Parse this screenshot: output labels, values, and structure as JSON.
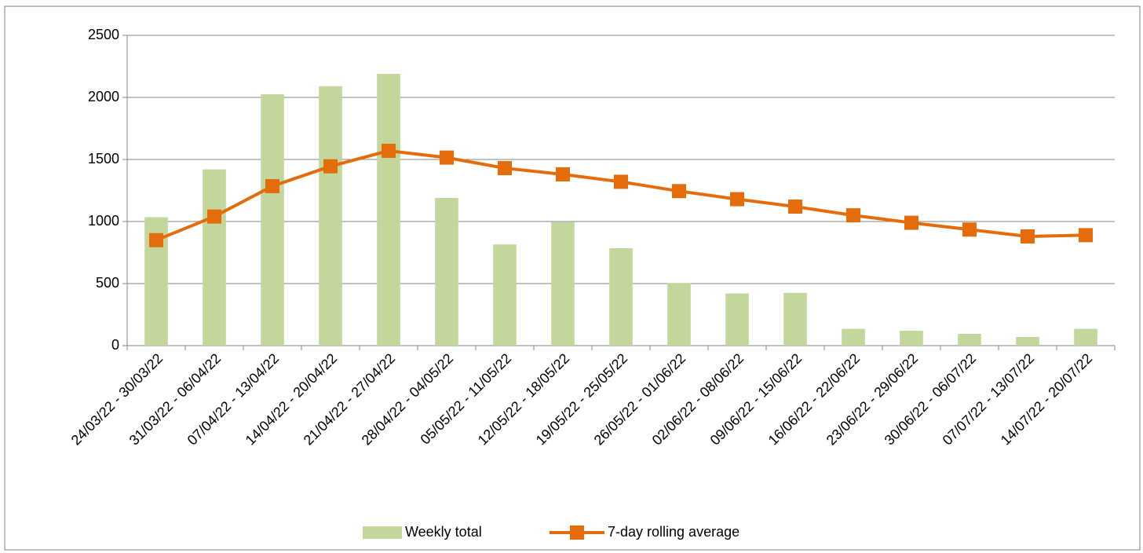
{
  "chart_data": {
    "type": "bar",
    "categories": [
      "24/03/22 - 30/03/22",
      "31/03/22 - 06/04/22",
      "07/04/22 - 13/04/22",
      "14/04/22 - 20/04/22",
      "21/04/22 - 27/04/22",
      "28/04/22 - 04/05/22",
      "05/05/22 - 11/05/22",
      "12/05/22 - 18/05/22",
      "19/05/22 - 25/05/22",
      "26/05/22 - 01/06/22",
      "02/06/22 - 08/06/22",
      "09/06/22 - 15/06/22",
      "16/06/22 - 22/06/22",
      "23/06/22 - 29/06/22",
      "30/06/22 - 06/07/22",
      "07/07/22 - 13/07/22",
      "14/07/22 - 20/07/22"
    ],
    "series": [
      {
        "name": "Weekly total",
        "type": "bar",
        "color": "#c3d69b",
        "values": [
          1035,
          1420,
          2025,
          2090,
          2190,
          1190,
          815,
          995,
          785,
          505,
          420,
          425,
          135,
          120,
          95,
          70,
          135
        ]
      },
      {
        "name": "7-day rolling average",
        "type": "line",
        "color": "#e46c0a",
        "values": [
          850,
          1040,
          1285,
          1445,
          1570,
          1515,
          1430,
          1380,
          1320,
          1245,
          1180,
          1120,
          1050,
          990,
          935,
          880,
          890
        ]
      }
    ],
    "ylim": [
      0,
      2500
    ],
    "yticks": [
      0,
      500,
      1000,
      1500,
      2000,
      2500
    ],
    "grid": true,
    "legend": "bottom"
  }
}
